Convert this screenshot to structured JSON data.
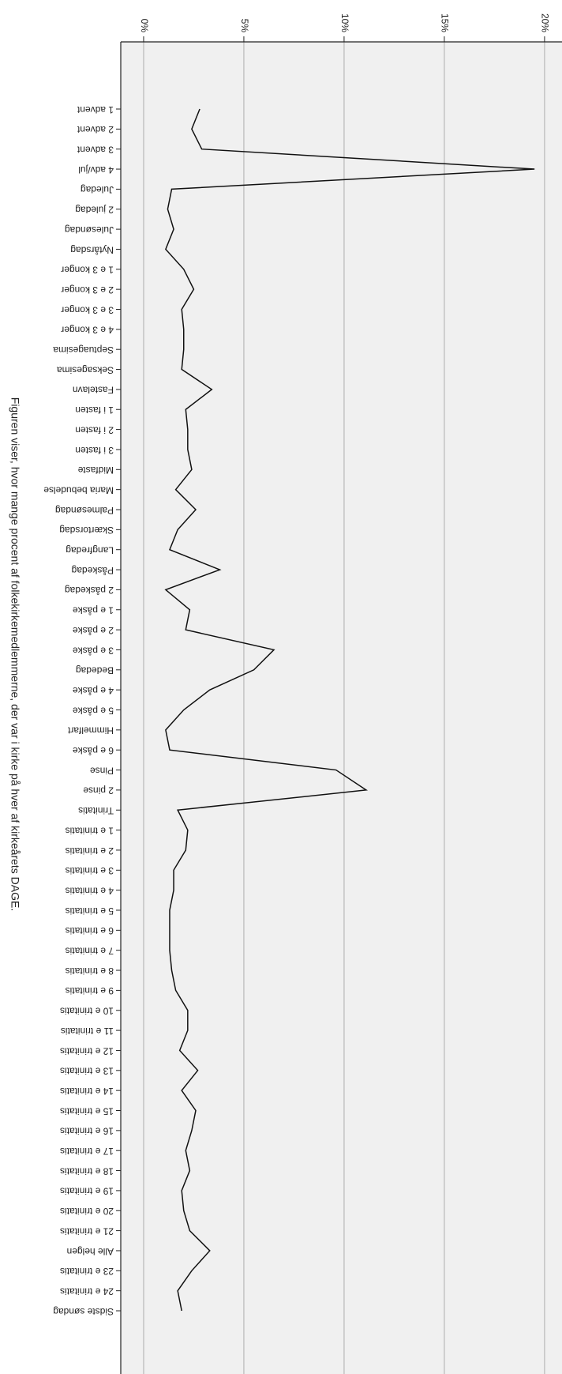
{
  "chart_data": {
    "type": "line",
    "orientation": "horizontal",
    "caption": "Figuren viser, hvor mange procent af folkekirkemedlemmerne, der var i kirke på hver af kirkeårets DAGE.",
    "categories": [
      "1 advent",
      "2 advent",
      "3 advent",
      "4 adv/jul",
      "Juledag",
      "2 juledag",
      "Julesøndag",
      "Nytårsdag",
      "1 e 3 konger",
      "2 e 3 konger",
      "3 e 3 konger",
      "4 e 3 konger",
      "Septuagesima",
      "Seksagesima",
      "Fastelavn",
      "1 i fasten",
      "2 i fasten",
      "3 i fasten",
      "Midfaste",
      "Maria bebudelse",
      "Palmesøndag",
      "Skærtorsdag",
      "Langfredag",
      "Påskedag",
      "2 påskedag",
      "1 e påske",
      "2 e påske",
      "3 e påske",
      "Bededag",
      "4 e påske",
      "5 e påske",
      "Himmelfart",
      "6 e påske",
      "Pinse",
      "2 pinse",
      "Trinitatis",
      "1 e trinitatis",
      "2 e trinitatis",
      "3 e trinitatis",
      "4 e trinitatis",
      "5 e trinitatis",
      "6 e trinitatis",
      "7 e trinitatis",
      "8 e trinitatis",
      "9 e trinitatis",
      "10 e trinitatis",
      "11 e trinitatis",
      "12 e trinitatis",
      "13 e trinitatis",
      "14 e trinitatis",
      "15 e trinitatis",
      "16 e trinitatis",
      "17 e trinitatis",
      "18 e trinitatis",
      "19 e trinitatis",
      "20 e trinitatis",
      "21 e trinitatis",
      "Alle helgen",
      "23 e trinitatis",
      "24 e trinitatis",
      "Sidste søndag"
    ],
    "values": [
      2.8,
      2.4,
      2.9,
      19.5,
      1.4,
      1.2,
      1.5,
      1.1,
      2.0,
      2.5,
      1.9,
      2.0,
      2.0,
      1.9,
      3.4,
      2.1,
      2.2,
      2.2,
      2.4,
      1.6,
      2.6,
      1.7,
      1.3,
      3.8,
      1.1,
      2.3,
      2.1,
      6.5,
      5.5,
      3.3,
      2.0,
      1.1,
      1.3,
      9.6,
      11.1,
      1.7,
      2.2,
      2.1,
      1.5,
      1.5,
      1.3,
      1.3,
      1.3,
      1.4,
      1.6,
      2.2,
      2.2,
      1.8,
      2.7,
      1.9,
      2.6,
      2.4,
      2.1,
      2.3,
      1.9,
      2.0,
      2.3,
      3.3,
      2.4,
      1.7,
      1.9
    ],
    "color": "#111111",
    "xlim": [
      -1.14,
      20.87
    ],
    "xticks": [
      {
        "value": 0,
        "label": "0%"
      },
      {
        "value": 5,
        "label": "5%"
      },
      {
        "value": 10,
        "label": "10%"
      },
      {
        "value": 15,
        "label": "15%"
      },
      {
        "value": 20,
        "label": "20%"
      }
    ],
    "grid": true
  }
}
